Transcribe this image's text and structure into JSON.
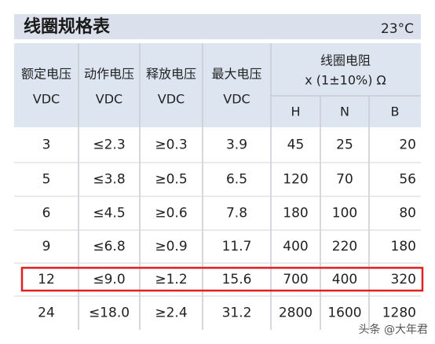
{
  "header": {
    "title": "线圈规格表",
    "temperature": "23°C"
  },
  "table": {
    "columns": [
      {
        "name": "额定电压",
        "unit": "VDC"
      },
      {
        "name": "动作电压",
        "unit": "VDC"
      },
      {
        "name": "释放电压",
        "unit": "VDC"
      },
      {
        "name": "最大电压",
        "unit": "VDC"
      }
    ],
    "resistance": {
      "name": "线圈电阻",
      "tolerance": "x (1±10%) Ω",
      "subcolumns": [
        "H",
        "N",
        "B"
      ]
    },
    "rows": [
      [
        "3",
        "≤2.3",
        "≥0.3",
        "3.9",
        "45",
        "25",
        "20"
      ],
      [
        "5",
        "≤3.8",
        "≥0.5",
        "6.5",
        "120",
        "70",
        "56"
      ],
      [
        "6",
        "≤4.5",
        "≥0.6",
        "7.8",
        "180",
        "100",
        "80"
      ],
      [
        "9",
        "≤6.8",
        "≥0.9",
        "11.7",
        "400",
        "220",
        "180"
      ],
      [
        "12",
        "≤9.0",
        "≥1.2",
        "15.6",
        "700",
        "400",
        "320"
      ],
      [
        "24",
        "≤18.0",
        "≥2.4",
        "31.2",
        "2800",
        "1600",
        "1280"
      ]
    ]
  },
  "watermark": "头条 @大年君"
}
